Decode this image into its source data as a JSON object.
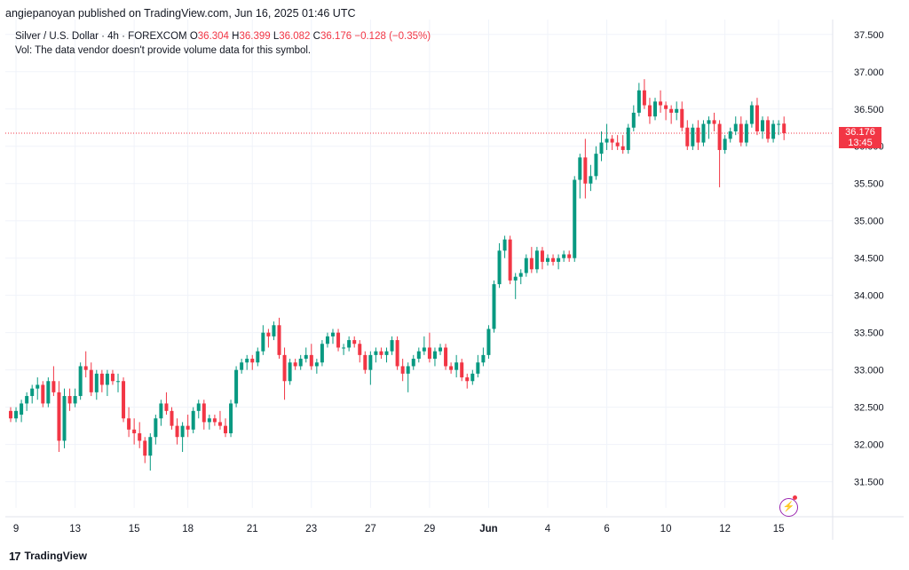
{
  "header": {
    "published_text": "angiepanoyan published on TradingView.com, Jun 16, 2025 01:46 UTC"
  },
  "legend": {
    "symbol": "Silver / U.S. Dollar · 4h · FOREXCOM",
    "o_label": "O",
    "o_value": "36.304",
    "h_label": "H",
    "h_value": "36.399",
    "l_label": "L",
    "l_value": "36.082",
    "c_label": "C",
    "c_value": "36.176",
    "change": "−0.128 (−0.35%)",
    "vol_note": "Vol: The data vendor doesn't provide volume data for this symbol."
  },
  "price_label": {
    "price": "36.176",
    "countdown": "13:45"
  },
  "footer": {
    "logo_mark": "17",
    "brand": "TradingView"
  },
  "colors": {
    "up": "#089981",
    "down": "#f23645",
    "grid": "#f0f3fa",
    "axis_text": "#131722",
    "last_line": "#f23645",
    "flash": "#9c27b0"
  },
  "icons": {
    "flash": "lightning-circle-icon"
  },
  "chart_data": {
    "type": "candlestick",
    "symbol": "Silver / U.S. Dollar",
    "interval": "4h",
    "y_ticks": [
      31.5,
      32.0,
      32.5,
      33.0,
      33.5,
      34.0,
      34.5,
      35.0,
      35.5,
      36.0,
      36.5,
      37.0,
      37.5
    ],
    "y_tick_labels": [
      "31.500",
      "32.000",
      "32.500",
      "33.000",
      "33.500",
      "34.000",
      "34.500",
      "35.000",
      "35.500",
      "36.000",
      "36.500",
      "37.000",
      "37.500"
    ],
    "ylim": [
      31.15,
      37.7
    ],
    "x_labels": [
      {
        "label": "9",
        "bar": 1
      },
      {
        "label": "13",
        "bar": 12
      },
      {
        "label": "15",
        "bar": 23
      },
      {
        "label": "18",
        "bar": 33
      },
      {
        "label": "21",
        "bar": 45
      },
      {
        "label": "23",
        "bar": 56
      },
      {
        "label": "27",
        "bar": 67
      },
      {
        "label": "29",
        "bar": 78
      },
      {
        "label": "Jun",
        "bar": 89
      },
      {
        "label": "4",
        "bar": 100
      },
      {
        "label": "6",
        "bar": 111
      },
      {
        "label": "10",
        "bar": 122
      },
      {
        "label": "12",
        "bar": 133
      },
      {
        "label": "15",
        "bar": 143
      }
    ],
    "last_price": 36.176,
    "candles": [
      [
        32.45,
        32.5,
        32.3,
        32.35
      ],
      [
        32.35,
        32.5,
        32.3,
        32.45
      ],
      [
        32.4,
        32.6,
        32.3,
        32.55
      ],
      [
        32.55,
        32.7,
        32.45,
        32.65
      ],
      [
        32.65,
        32.8,
        32.55,
        32.75
      ],
      [
        32.75,
        32.9,
        32.6,
        32.8
      ],
      [
        32.8,
        32.85,
        32.5,
        32.55
      ],
      [
        32.55,
        32.9,
        32.5,
        32.85
      ],
      [
        32.85,
        33.05,
        32.65,
        32.7
      ],
      [
        32.7,
        32.85,
        31.9,
        32.05
      ],
      [
        32.05,
        32.75,
        31.95,
        32.65
      ],
      [
        32.65,
        32.75,
        32.45,
        32.55
      ],
      [
        32.55,
        32.75,
        32.5,
        32.65
      ],
      [
        32.65,
        33.1,
        32.6,
        33.05
      ],
      [
        33.05,
        33.25,
        32.9,
        33.0
      ],
      [
        33.0,
        33.1,
        32.65,
        32.7
      ],
      [
        32.7,
        33.0,
        32.6,
        32.95
      ],
      [
        32.95,
        33.0,
        32.7,
        32.8
      ],
      [
        32.8,
        33.0,
        32.65,
        32.95
      ],
      [
        32.95,
        33.0,
        32.8,
        32.85
      ],
      [
        32.85,
        32.95,
        32.7,
        32.85
      ],
      [
        32.85,
        32.9,
        32.3,
        32.35
      ],
      [
        32.35,
        32.5,
        32.1,
        32.2
      ],
      [
        32.2,
        32.35,
        32.0,
        32.15
      ],
      [
        32.15,
        32.3,
        31.95,
        32.05
      ],
      [
        32.05,
        32.1,
        31.75,
        31.85
      ],
      [
        31.85,
        32.15,
        31.65,
        32.1
      ],
      [
        32.1,
        32.4,
        32.0,
        32.35
      ],
      [
        32.35,
        32.6,
        32.25,
        32.55
      ],
      [
        32.55,
        32.7,
        32.4,
        32.45
      ],
      [
        32.45,
        32.5,
        32.2,
        32.25
      ],
      [
        32.25,
        32.35,
        32.0,
        32.1
      ],
      [
        32.1,
        32.3,
        31.9,
        32.25
      ],
      [
        32.25,
        32.4,
        32.1,
        32.2
      ],
      [
        32.2,
        32.5,
        32.15,
        32.45
      ],
      [
        32.45,
        32.6,
        32.35,
        32.55
      ],
      [
        32.55,
        32.6,
        32.2,
        32.3
      ],
      [
        32.3,
        32.4,
        32.2,
        32.35
      ],
      [
        32.35,
        32.4,
        32.25,
        32.3
      ],
      [
        32.3,
        32.45,
        32.2,
        32.25
      ],
      [
        32.25,
        32.35,
        32.1,
        32.15
      ],
      [
        32.15,
        32.6,
        32.1,
        32.55
      ],
      [
        32.55,
        33.05,
        32.5,
        33.0
      ],
      [
        33.0,
        33.15,
        32.95,
        33.1
      ],
      [
        33.1,
        33.2,
        33.0,
        33.15
      ],
      [
        33.15,
        33.2,
        33.0,
        33.1
      ],
      [
        33.1,
        33.3,
        33.05,
        33.25
      ],
      [
        33.25,
        33.6,
        33.2,
        33.5
      ],
      [
        33.5,
        33.55,
        33.3,
        33.45
      ],
      [
        33.45,
        33.65,
        33.4,
        33.6
      ],
      [
        33.6,
        33.7,
        33.15,
        33.2
      ],
      [
        33.2,
        33.3,
        32.6,
        32.85
      ],
      [
        32.85,
        33.15,
        32.8,
        33.1
      ],
      [
        33.1,
        33.15,
        33.0,
        33.05
      ],
      [
        33.05,
        33.2,
        33.0,
        33.15
      ],
      [
        33.15,
        33.3,
        33.1,
        33.2
      ],
      [
        33.2,
        33.35,
        33.0,
        33.05
      ],
      [
        33.05,
        33.15,
        32.95,
        33.1
      ],
      [
        33.1,
        33.4,
        33.05,
        33.35
      ],
      [
        33.35,
        33.5,
        33.3,
        33.45
      ],
      [
        33.45,
        33.55,
        33.35,
        33.5
      ],
      [
        33.5,
        33.55,
        33.25,
        33.3
      ],
      [
        33.3,
        33.35,
        33.2,
        33.3
      ],
      [
        33.3,
        33.45,
        33.25,
        33.4
      ],
      [
        33.4,
        33.45,
        33.3,
        33.35
      ],
      [
        33.35,
        33.4,
        33.1,
        33.2
      ],
      [
        33.2,
        33.25,
        32.95,
        33.0
      ],
      [
        33.0,
        33.25,
        32.8,
        33.2
      ],
      [
        33.2,
        33.3,
        33.1,
        33.25
      ],
      [
        33.25,
        33.3,
        33.15,
        33.2
      ],
      [
        33.2,
        33.3,
        33.1,
        33.25
      ],
      [
        33.25,
        33.45,
        33.2,
        33.4
      ],
      [
        33.4,
        33.45,
        33.0,
        33.05
      ],
      [
        33.05,
        33.15,
        32.85,
        32.95
      ],
      [
        32.95,
        33.1,
        32.7,
        33.05
      ],
      [
        33.05,
        33.2,
        33.0,
        33.15
      ],
      [
        33.15,
        33.3,
        33.1,
        33.25
      ],
      [
        33.25,
        33.45,
        33.2,
        33.3
      ],
      [
        33.3,
        33.5,
        33.1,
        33.15
      ],
      [
        33.15,
        33.3,
        33.05,
        33.25
      ],
      [
        33.25,
        33.35,
        33.2,
        33.3
      ],
      [
        33.3,
        33.35,
        33.0,
        33.05
      ],
      [
        33.05,
        33.1,
        32.95,
        33.0
      ],
      [
        33.0,
        33.2,
        32.9,
        33.1
      ],
      [
        33.1,
        33.15,
        32.85,
        32.9
      ],
      [
        32.9,
        32.95,
        32.75,
        32.85
      ],
      [
        32.85,
        33.0,
        32.8,
        32.95
      ],
      [
        32.95,
        33.2,
        32.9,
        33.1
      ],
      [
        33.1,
        33.3,
        33.05,
        33.2
      ],
      [
        33.2,
        33.6,
        33.15,
        33.55
      ],
      [
        33.55,
        34.2,
        33.5,
        34.15
      ],
      [
        34.15,
        34.7,
        34.1,
        34.6
      ],
      [
        34.6,
        34.8,
        34.5,
        34.75
      ],
      [
        34.75,
        34.8,
        34.15,
        34.2
      ],
      [
        34.2,
        34.3,
        33.95,
        34.25
      ],
      [
        34.25,
        34.35,
        34.15,
        34.3
      ],
      [
        34.3,
        34.55,
        34.25,
        34.5
      ],
      [
        34.5,
        34.65,
        34.3,
        34.35
      ],
      [
        34.35,
        34.65,
        34.3,
        34.6
      ],
      [
        34.6,
        34.65,
        34.35,
        34.45
      ],
      [
        34.45,
        34.55,
        34.4,
        34.5
      ],
      [
        34.5,
        34.55,
        34.4,
        34.45
      ],
      [
        34.45,
        34.55,
        34.35,
        34.5
      ],
      [
        34.5,
        34.6,
        34.45,
        34.55
      ],
      [
        34.55,
        34.6,
        34.45,
        34.5
      ],
      [
        34.5,
        35.6,
        34.45,
        35.55
      ],
      [
        35.55,
        35.9,
        35.3,
        35.85
      ],
      [
        35.85,
        36.1,
        35.3,
        35.5
      ],
      [
        35.5,
        35.75,
        35.4,
        35.6
      ],
      [
        35.6,
        36.0,
        35.55,
        35.9
      ],
      [
        35.9,
        36.2,
        35.8,
        36.05
      ],
      [
        36.05,
        36.3,
        35.95,
        36.1
      ],
      [
        36.1,
        36.15,
        35.95,
        36.05
      ],
      [
        36.05,
        36.15,
        35.95,
        36.0
      ],
      [
        36.0,
        36.15,
        35.9,
        35.95
      ],
      [
        35.95,
        36.3,
        35.9,
        36.25
      ],
      [
        36.25,
        36.55,
        36.2,
        36.45
      ],
      [
        36.45,
        36.85,
        36.4,
        36.75
      ],
      [
        36.75,
        36.9,
        36.5,
        36.55
      ],
      [
        36.55,
        36.65,
        36.3,
        36.4
      ],
      [
        36.4,
        36.65,
        36.35,
        36.6
      ],
      [
        36.6,
        36.75,
        36.45,
        36.55
      ],
      [
        36.55,
        36.6,
        36.35,
        36.5
      ],
      [
        36.5,
        36.55,
        36.3,
        36.45
      ],
      [
        36.45,
        36.6,
        36.35,
        36.5
      ],
      [
        36.5,
        36.6,
        36.2,
        36.25
      ],
      [
        36.25,
        36.35,
        35.95,
        36.0
      ],
      [
        36.0,
        36.3,
        35.95,
        36.25
      ],
      [
        36.25,
        36.35,
        35.95,
        36.05
      ],
      [
        36.05,
        36.35,
        36.0,
        36.3
      ],
      [
        36.3,
        36.4,
        36.1,
        36.35
      ],
      [
        36.35,
        36.45,
        36.2,
        36.3
      ],
      [
        36.3,
        36.35,
        35.45,
        35.95
      ],
      [
        35.95,
        36.15,
        35.9,
        36.1
      ],
      [
        36.1,
        36.25,
        36.05,
        36.2
      ],
      [
        36.2,
        36.4,
        36.15,
        36.3
      ],
      [
        36.3,
        36.4,
        36.0,
        36.05
      ],
      [
        36.05,
        36.35,
        36.0,
        36.3
      ],
      [
        36.3,
        36.6,
        36.25,
        36.55
      ],
      [
        36.55,
        36.65,
        36.15,
        36.2
      ],
      [
        36.2,
        36.4,
        36.1,
        36.35
      ],
      [
        36.35,
        36.4,
        36.05,
        36.1
      ],
      [
        36.1,
        36.35,
        36.05,
        36.3
      ],
      [
        36.3,
        36.35,
        36.15,
        36.3
      ],
      [
        36.304,
        36.399,
        36.082,
        36.176
      ]
    ]
  }
}
